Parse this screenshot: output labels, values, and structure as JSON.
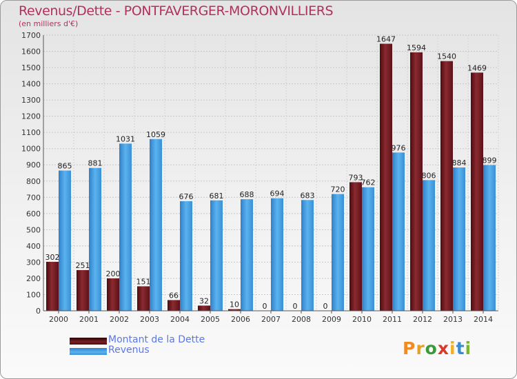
{
  "title": "Revenus/Dette - PONTFAVERGER-MORONVILLIERS",
  "subtitle": "(en milliers d'€)",
  "logo": "Proxiti",
  "colors": {
    "dette": "#7a1e24",
    "revenus": "#4ba3e6",
    "title": "#b03060",
    "legend_text": "#5b78e6"
  },
  "legend": [
    {
      "label": "Montant de la Dette",
      "color": "#7a1e24"
    },
    {
      "label": "Revenus",
      "color": "#4ba3e6"
    }
  ],
  "chart_data": {
    "type": "bar",
    "title": "Revenus/Dette - PONTFAVERGER-MORONVILLIERS",
    "ylabel": "(en milliers d'€)",
    "xlabel": "",
    "ylim": [
      0,
      1700
    ],
    "yticks": [
      0,
      100,
      200,
      300,
      400,
      500,
      600,
      700,
      800,
      900,
      1000,
      1100,
      1200,
      1300,
      1400,
      1500,
      1600,
      1700
    ],
    "grid": true,
    "categories": [
      "2000",
      "2001",
      "2002",
      "2003",
      "2004",
      "2005",
      "2006",
      "2007",
      "2008",
      "2009",
      "2010",
      "2011",
      "2012",
      "2013",
      "2014"
    ],
    "series": [
      {
        "name": "Montant de la Dette",
        "color": "#7a1e24",
        "values": [
          302,
          251,
          200,
          151,
          66,
          32,
          10,
          0,
          0,
          0,
          793,
          1647,
          1594,
          1540,
          1469
        ]
      },
      {
        "name": "Revenus",
        "color": "#4ba3e6",
        "values": [
          865,
          881,
          1031,
          1059,
          676,
          681,
          688,
          694,
          683,
          720,
          762,
          976,
          806,
          884,
          899
        ]
      }
    ]
  }
}
